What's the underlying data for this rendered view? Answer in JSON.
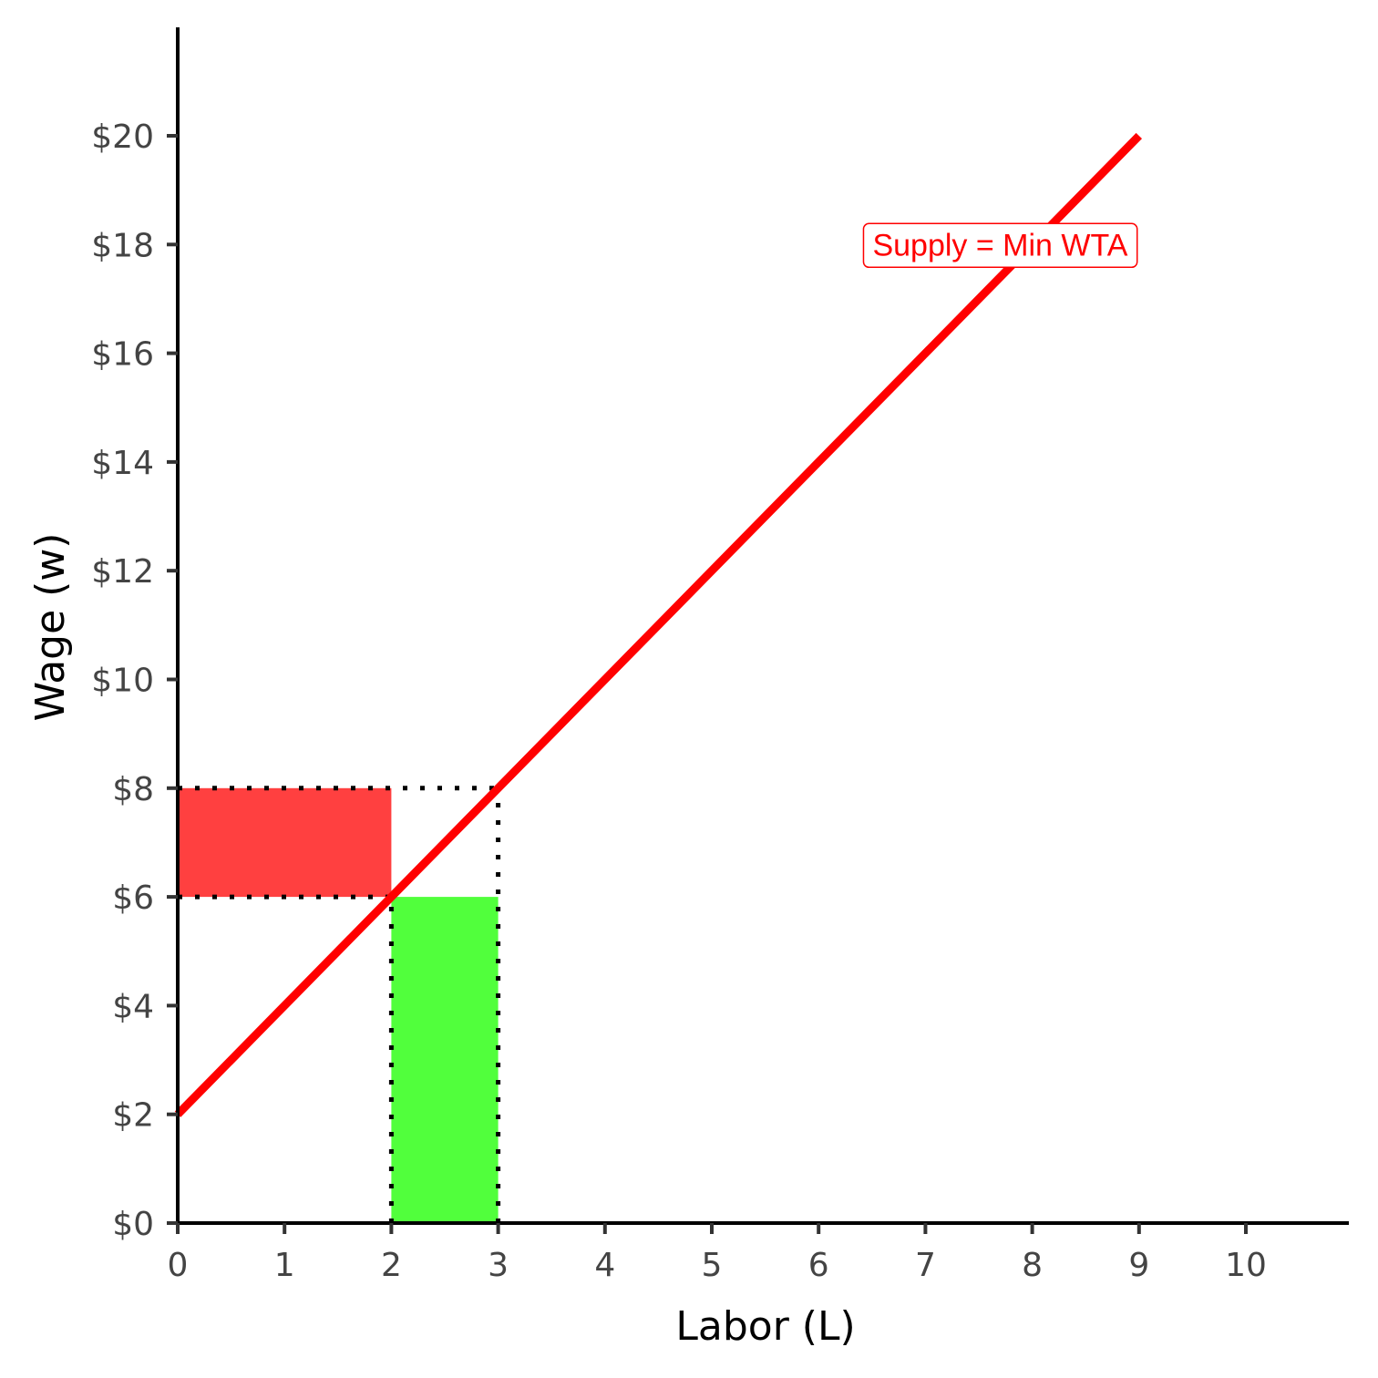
{
  "chart_data": {
    "type": "line",
    "xlabel": "Labor (L)",
    "ylabel": "Wage (w)",
    "xlim": [
      0,
      11
    ],
    "ylim": [
      0,
      22
    ],
    "x_ticks": [
      0,
      1,
      2,
      3,
      4,
      5,
      6,
      7,
      8,
      9,
      10
    ],
    "x_tick_labels": [
      "0",
      "1",
      "2",
      "3",
      "4",
      "5",
      "6",
      "7",
      "8",
      "9",
      "10"
    ],
    "y_ticks": [
      0,
      2,
      4,
      6,
      8,
      10,
      12,
      14,
      16,
      18,
      20
    ],
    "y_tick_labels": [
      "$0",
      "$2",
      "$4",
      "$6",
      "$8",
      "$10",
      "$12",
      "$14",
      "$16",
      "$18",
      "$20"
    ],
    "grid": false,
    "series": [
      {
        "name": "Supply = Min WTA",
        "color": "#ff0000",
        "x": [
          0,
          9
        ],
        "y": [
          2,
          20
        ]
      }
    ],
    "shaded_regions": [
      {
        "x": [
          0,
          2
        ],
        "y": [
          6,
          8
        ],
        "color": "#ff0000",
        "opacity": 0.75
      },
      {
        "x": [
          2,
          3
        ],
        "y": [
          0,
          6
        ],
        "color": "#33ff1a",
        "opacity": 0.85
      }
    ],
    "reference_lines": [
      {
        "x": [
          0,
          3
        ],
        "y": [
          8,
          8
        ],
        "style": "dotted"
      },
      {
        "x": [
          0,
          2
        ],
        "y": [
          6,
          6
        ],
        "style": "dotted"
      },
      {
        "x": [
          2,
          2
        ],
        "y": [
          0,
          6
        ],
        "style": "dotted"
      },
      {
        "x": [
          3,
          3
        ],
        "y": [
          0,
          8
        ],
        "style": "dotted"
      }
    ],
    "annotations": [
      {
        "text": "Supply = Min WTA",
        "x": 7.7,
        "y": 18,
        "color": "#ff0000",
        "boxed": true
      }
    ]
  }
}
